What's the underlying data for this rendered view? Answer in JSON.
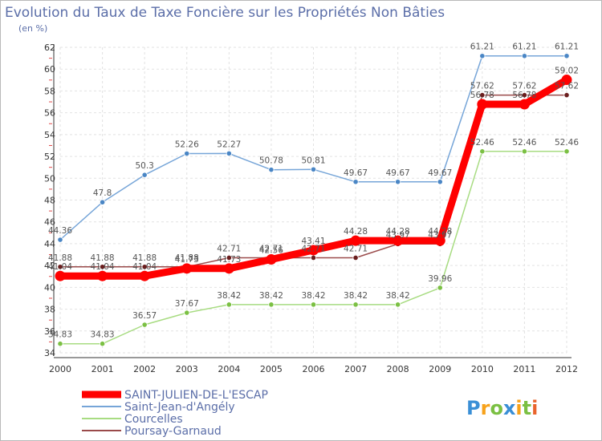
{
  "chart_data": {
    "type": "line",
    "title": "Evolution du Taux de Taxe Foncière sur les Propriétés Non Bâties",
    "ylabel": "(en %)",
    "xlabel": "",
    "x": [
      "2000",
      "2001",
      "2002",
      "2003",
      "2004",
      "2005",
      "2006",
      "2007",
      "2008",
      "2009",
      "2010",
      "2011",
      "2012"
    ],
    "ylim": [
      34,
      62
    ],
    "yticks": [
      34,
      36,
      38,
      40,
      42,
      44,
      46,
      48,
      50,
      52,
      54,
      56,
      58,
      60,
      62
    ],
    "grid": true,
    "series": [
      {
        "name": "SAINT-JULIEN-DE-L'ESCAP",
        "color": "#ff0000",
        "point_color": "#ff0000",
        "main": true,
        "values": [
          41.04,
          41.04,
          41.04,
          41.73,
          41.73,
          42.56,
          43.41,
          44.28,
          44.28,
          44.28,
          56.78,
          56.78,
          59.02
        ],
        "labels": [
          "41.04",
          "41.04",
          "41.04",
          "41.73",
          "41.73",
          "42.56",
          "43.41",
          "44.28",
          "44.28",
          "44.28",
          "56.78",
          "56.78",
          "59.02"
        ]
      },
      {
        "name": "Saint-Jean-d'Angély",
        "color": "#76a5d8",
        "point_color": "#4a86c5",
        "values": [
          44.36,
          47.8,
          50.3,
          52.26,
          52.27,
          50.78,
          50.81,
          49.67,
          49.67,
          49.67,
          61.21,
          61.21,
          61.21
        ],
        "labels": [
          "44.36",
          "47.8",
          "50.3",
          "52.26",
          "52.27",
          "50.78",
          "50.81",
          "49.67",
          "49.67",
          "49.67",
          "61.21",
          "61.21",
          "61.21"
        ]
      },
      {
        "name": "Courcelles",
        "color": "#a8dc82",
        "point_color": "#7bc043",
        "values": [
          34.83,
          34.83,
          36.57,
          37.67,
          38.42,
          38.42,
          38.42,
          38.42,
          38.42,
          39.96,
          52.46,
          52.46,
          52.46
        ],
        "labels": [
          "34.83",
          "34.83",
          "36.57",
          "37.67",
          "38.42",
          "38.42",
          "38.42",
          "38.42",
          "38.42",
          "39.96",
          "52.46",
          "52.46",
          "52.46"
        ]
      },
      {
        "name": "Poursay-Garnaud",
        "color": "#9a4a4a",
        "point_color": "#6a1d1d",
        "values": [
          41.88,
          41.88,
          41.88,
          41.88,
          42.71,
          42.71,
          42.71,
          42.71,
          43.97,
          43.97,
          57.62,
          57.62,
          57.62
        ],
        "labels": [
          "41.88",
          "41.88",
          "41.88",
          "41.88",
          "42.71",
          "42.71",
          "42.71",
          "42.71",
          "43.97",
          "43.97",
          "57.62",
          "57.62",
          "57.62"
        ]
      }
    ],
    "legend_position": "bottom-left"
  },
  "brand": {
    "letters": [
      "P",
      "r",
      "o",
      "x",
      "i",
      "t",
      "i"
    ],
    "colors": [
      "#3a8fd6",
      "#f7a21b",
      "#7bc043",
      "#3a8fd6",
      "#f7a21b",
      "#7bc043",
      "#e9642c"
    ]
  }
}
